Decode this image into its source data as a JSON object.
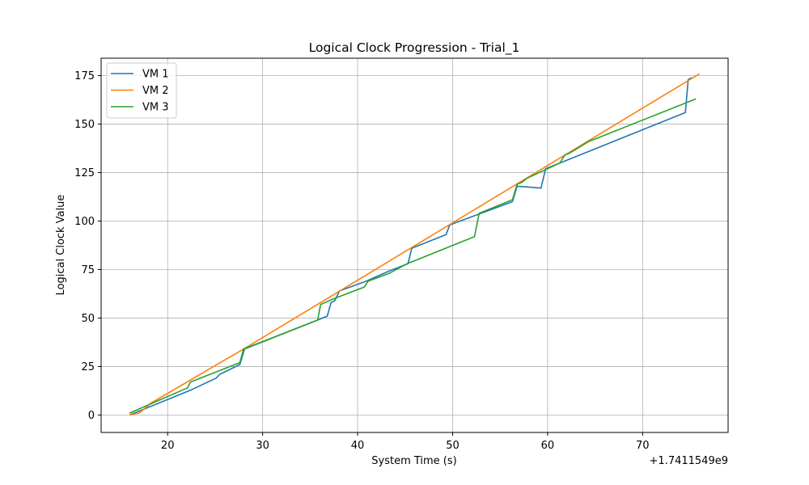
{
  "chart_data": {
    "type": "line",
    "title": "Logical Clock Progression - Trial_1",
    "xlabel": "System Time (s)",
    "ylabel": "Logical Clock Value",
    "x_offset_label": "+1.7411549e9",
    "xlim": [
      13,
      79
    ],
    "ylim": [
      -9,
      184
    ],
    "xticks": [
      20,
      30,
      40,
      50,
      60,
      70
    ],
    "yticks": [
      0,
      25,
      50,
      75,
      100,
      125,
      150,
      175
    ],
    "grid": true,
    "legend_position": "top-left",
    "series": [
      {
        "name": "VM 1",
        "color": "#1f77b4",
        "x": [
          16.0,
          22.5,
          25.1,
          25.5,
          27.6,
          28.1,
          35.8,
          36.8,
          37.2,
          37.6,
          38.1,
          40.9,
          43.2,
          45.3,
          45.7,
          49.3,
          49.7,
          56.3,
          56.8,
          59.3,
          59.8,
          74.5,
          74.8,
          75.2
        ],
        "y": [
          0,
          13,
          19,
          21,
          26,
          34,
          49,
          51,
          58,
          59,
          64,
          69,
          74,
          78,
          86,
          93,
          98,
          110,
          118,
          117,
          127,
          156,
          173,
          174
        ]
      },
      {
        "name": "VM 2",
        "color": "#ff7f0e",
        "x": [
          16.0,
          17.0,
          17.5,
          18.2,
          28.0,
          76.0
        ],
        "y": [
          0,
          1,
          3,
          6,
          34,
          176
        ]
      },
      {
        "name": "VM 3",
        "color": "#2ca02c",
        "x": [
          16.0,
          22.1,
          22.4,
          25.0,
          27.6,
          28.0,
          35.8,
          36.1,
          37.5,
          40.7,
          41.1,
          43.3,
          45.2,
          52.3,
          52.8,
          56.3,
          56.8,
          57.3,
          57.8,
          61.3,
          61.8,
          62.3,
          63.3,
          64.3,
          75.6
        ],
        "y": [
          1,
          14,
          17,
          22,
          27,
          34,
          49,
          57,
          60,
          66,
          69,
          73,
          78,
          92,
          104,
          111,
          119,
          120,
          122,
          130,
          134,
          135,
          138,
          141,
          163
        ]
      }
    ]
  }
}
